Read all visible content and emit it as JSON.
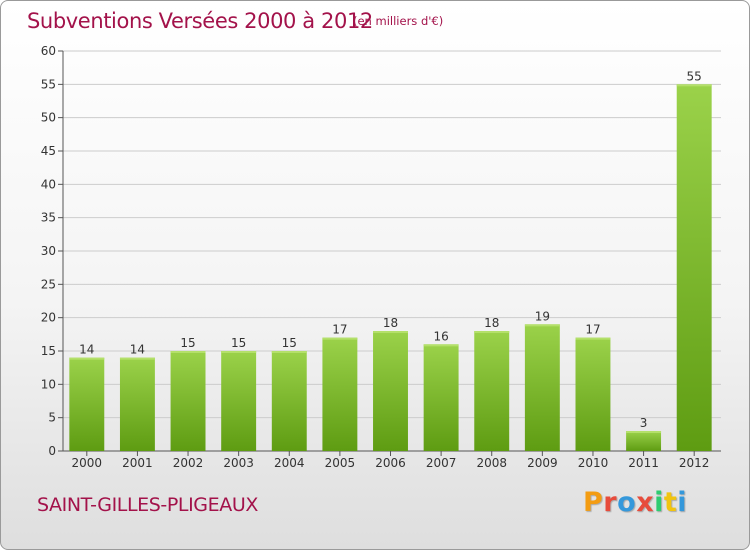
{
  "header": {
    "title": "Subventions Versées 2000 à 2012",
    "subtitle": "(en milliers d'€)"
  },
  "footer": {
    "commune": "SAINT-GILLES-PLIGEAUX",
    "logo_text": "Proxiti",
    "logo_colors": [
      "#f39c12",
      "#e74c3c",
      "#3498db",
      "#e74c3c",
      "#2ecc71",
      "#f1c40f",
      "#3498db"
    ]
  },
  "colors": {
    "text_accent": "#a3124a",
    "bar_light": "#9bd24a",
    "bar_dark": "#5e9c12",
    "grid": "#cccccc",
    "axis": "#555555"
  },
  "chart_data": {
    "type": "bar",
    "categories": [
      "2000",
      "2001",
      "2002",
      "2003",
      "2004",
      "2005",
      "2006",
      "2007",
      "2008",
      "2009",
      "2010",
      "2011",
      "2012"
    ],
    "values": [
      14,
      14,
      15,
      15,
      15,
      17,
      18,
      16,
      18,
      19,
      17,
      3,
      55
    ],
    "title": "Subventions Versées 2000 à 2012",
    "subtitle": "(en milliers d'€)",
    "xlabel": "",
    "ylabel": "",
    "ylim": [
      0,
      60
    ],
    "yticks": [
      0,
      5,
      10,
      15,
      20,
      25,
      30,
      35,
      40,
      45,
      50,
      55,
      60
    ],
    "grid": true,
    "data_labels": true
  }
}
